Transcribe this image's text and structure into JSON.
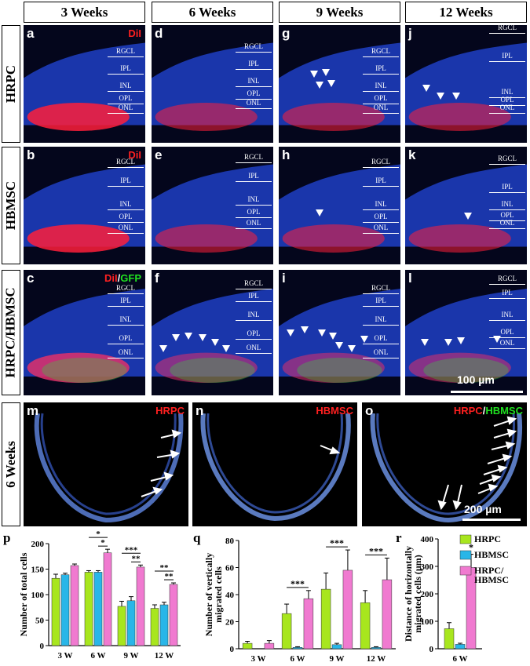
{
  "columns": [
    "3 Weeks",
    "6 Weeks",
    "9 Weeks",
    "12 Weeks"
  ],
  "rows": [
    "HRPC",
    "HBMSC",
    "HRPC/HBMSC"
  ],
  "row_bottom_label": "6 Weeks",
  "panel_letters": [
    [
      "a",
      "d",
      "g",
      "j"
    ],
    [
      "b",
      "e",
      "h",
      "k"
    ],
    [
      "c",
      "f",
      "i",
      "l"
    ]
  ],
  "bottom_letters": [
    "m",
    "n",
    "o"
  ],
  "dye_labels": {
    "a": "DiI",
    "b": "DiI",
    "c_red": "DiI",
    "c_slash": "/",
    "c_green": "GFP",
    "m": "HRPC",
    "n": "HBMSC",
    "o_red": "HRPC",
    "o_slash": "/",
    "o_green": "HBMSC"
  },
  "layer_names": [
    "RGCL",
    "IPL",
    "INL",
    "OPL",
    "ONL"
  ],
  "scalebar_top": "100 µm",
  "scalebar_bottom": "200 µm",
  "colors": {
    "hrpc": "#a8e61e",
    "hbmsc": "#29b6e8",
    "combo": "#f07ad0"
  },
  "charts": {
    "p": {
      "letter": "p",
      "ylabel": "Number of total cells"
    },
    "q": {
      "letter": "q",
      "ylabel_line1": "Number of vertically",
      "ylabel_line2": "migrated cells"
    },
    "r": {
      "letter": "r",
      "ylabel_line1": "Distance of horizontally",
      "ylabel_line2": "migrated cells (µm)"
    }
  },
  "legend": {
    "hrpc": "HRPC",
    "hbmsc": "HBMSC",
    "combo_line1": "HRPC/",
    "combo_line2": "HBMSC"
  },
  "chart_data": [
    {
      "type": "bar",
      "categories": [
        "3 W",
        "6 W",
        "9 W",
        "12 W"
      ],
      "ylabel": "Number of total cells",
      "ylim": [
        0,
        200
      ],
      "yticks": [
        0,
        50,
        100,
        150,
        200
      ],
      "series": [
        {
          "name": "HRPC",
          "values": [
            132,
            144,
            77,
            73
          ],
          "errors": [
            8,
            3,
            10,
            7
          ]
        },
        {
          "name": "HBMSC",
          "values": [
            139,
            144,
            88,
            80
          ],
          "errors": [
            3,
            3,
            8,
            5
          ]
        },
        {
          "name": "HRPC/HBMSC",
          "values": [
            157,
            182,
            154,
            120
          ],
          "errors": [
            3,
            7,
            4,
            3
          ]
        }
      ],
      "significance": [
        {
          "group": 1,
          "pair": [
            0,
            2
          ],
          "label": "*"
        },
        {
          "group": 1,
          "pair": [
            1,
            2
          ],
          "label": "*"
        },
        {
          "group": 2,
          "pair": [
            0,
            2
          ],
          "label": "***"
        },
        {
          "group": 2,
          "pair": [
            1,
            2
          ],
          "label": "**"
        },
        {
          "group": 3,
          "pair": [
            0,
            2
          ],
          "label": "**"
        },
        {
          "group": 3,
          "pair": [
            1,
            2
          ],
          "label": "**"
        }
      ]
    },
    {
      "type": "bar",
      "categories": [
        "3 W",
        "6 W",
        "9 W",
        "12 W"
      ],
      "ylabel": "Number of vertically migrated cells",
      "ylim": [
        0,
        80
      ],
      "yticks": [
        0,
        20,
        40,
        60,
        80
      ],
      "series": [
        {
          "name": "HRPC",
          "values": [
            4,
            26,
            44,
            34
          ],
          "errors": [
            1.5,
            7,
            12,
            9
          ]
        },
        {
          "name": "HBMSC",
          "values": [
            0,
            1,
            3,
            1
          ],
          "errors": [
            0,
            0.5,
            1,
            0.5
          ]
        },
        {
          "name": "HRPC/HBMSC",
          "values": [
            4,
            37,
            58,
            51
          ],
          "errors": [
            2,
            6,
            15,
            16
          ]
        }
      ],
      "significance": [
        {
          "group": 1,
          "label": "***"
        },
        {
          "group": 2,
          "label": "***"
        },
        {
          "group": 3,
          "label": "***"
        }
      ]
    },
    {
      "type": "bar",
      "categories": [
        "6 W"
      ],
      "ylabel": "Distance of horizontally migrated cells (µm)",
      "ylim": [
        0,
        400
      ],
      "yticks": [
        0,
        100,
        200,
        300,
        400
      ],
      "series": [
        {
          "name": "HRPC",
          "values": [
            73
          ],
          "errors": [
            22
          ]
        },
        {
          "name": "HBMSC",
          "values": [
            16
          ],
          "errors": [
            4
          ]
        },
        {
          "name": "HRPC/HBMSC",
          "values": [
            296
          ],
          "errors": [
            48
          ]
        }
      ],
      "significance": [
        {
          "group": 0,
          "label": "*"
        }
      ]
    }
  ]
}
